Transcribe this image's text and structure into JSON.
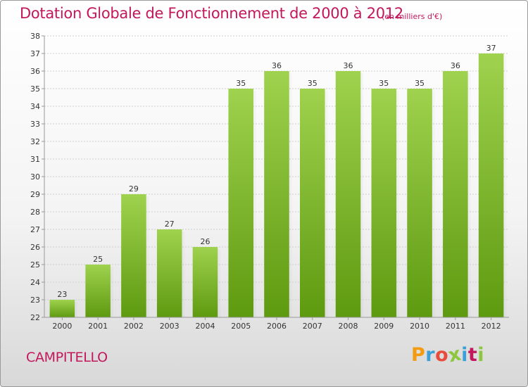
{
  "header": {
    "title": "Dotation Globale de Fonctionnement de 2000 à 2012",
    "unit": "(en milliers d'€)"
  },
  "footer": {
    "commune": "CAMPITELLO",
    "logo_letters": [
      "P",
      "r",
      "o",
      "x",
      "i",
      "t",
      "i"
    ],
    "logo_colors": [
      "#f39c12",
      "#3aa0d8",
      "#e74c3c",
      "#8dc63f",
      "#3aa0d8",
      "#c2185b",
      "#8dc63f"
    ]
  },
  "colors": {
    "bar_top": "#9fd24e",
    "bar_bottom": "#5e9a10",
    "accent": "#c2185b"
  },
  "chart_data": {
    "type": "bar",
    "title": "Dotation Globale de Fonctionnement de 2000 à 2012",
    "xlabel": "",
    "ylabel": "",
    "categories": [
      "2000",
      "2001",
      "2002",
      "2003",
      "2004",
      "2005",
      "2006",
      "2007",
      "2008",
      "2009",
      "2010",
      "2011",
      "2012"
    ],
    "values": [
      23,
      25,
      29,
      27,
      26,
      35,
      36,
      35,
      36,
      35,
      35,
      36,
      37
    ],
    "ylim": [
      22,
      38
    ],
    "yticks": [
      22,
      23,
      24,
      25,
      26,
      27,
      28,
      29,
      30,
      31,
      32,
      33,
      34,
      35,
      36,
      37,
      38
    ],
    "grid": true,
    "legend": "none"
  }
}
